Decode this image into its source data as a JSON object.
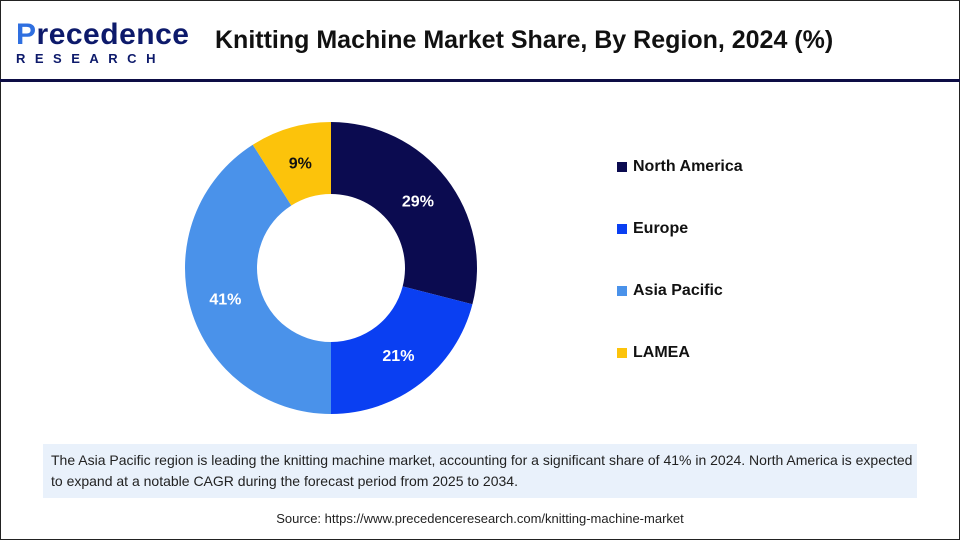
{
  "logo": {
    "line1_a": "P",
    "line1_b": "recedence",
    "line2": "RESEARCH"
  },
  "title": "Knitting Machine Market Share, By Region, 2024 (%)",
  "chart_data": {
    "type": "pie",
    "donut": true,
    "title": "Knitting Machine Market Share, By Region, 2024 (%)",
    "categories": [
      "North America",
      "Europe",
      "Asia Pacific",
      "LAMEA"
    ],
    "values": [
      29,
      21,
      41,
      9
    ],
    "labels": [
      "29%",
      "21%",
      "41%",
      "9%"
    ],
    "colors": [
      "#0b0b50",
      "#0a3ff2",
      "#4a92ea",
      "#fcc30b"
    ],
    "label_colors": [
      "#ffffff",
      "#ffffff",
      "#ffffff",
      "#111111"
    ],
    "legend_position": "right"
  },
  "note": "The Asia Pacific region is leading the knitting machine market, accounting for a significant share of 41% in 2024. North America is expected to expand at a notable CAGR during the forecast period from 2025 to 2034.",
  "source": "Source: https://www.precedenceresearch.com/knitting-machine-market"
}
